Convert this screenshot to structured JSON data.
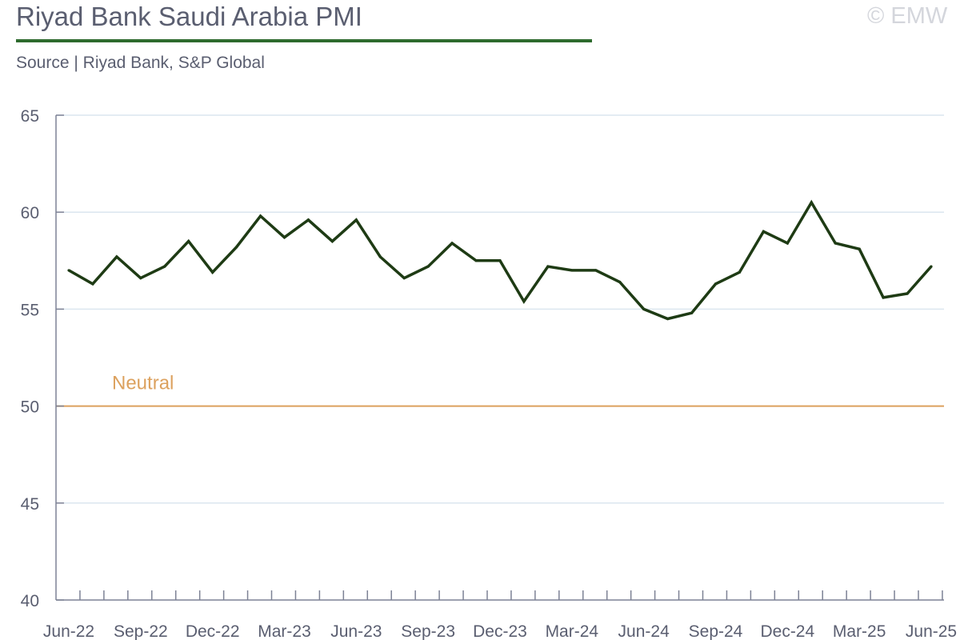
{
  "header": {
    "title": "Riyad Bank Saudi Arabia PMI",
    "source": "Source | Riyad Bank, S&P Global",
    "copyright": "© EMW"
  },
  "colors": {
    "accent": "#2e6b2e",
    "line": "#1e3b14",
    "reference": "#dca15e",
    "grid": "#dbe6ef",
    "axis": "#7d8295",
    "text": "#5a5e70"
  },
  "chart_data": {
    "type": "line",
    "title": "Riyad Bank Saudi Arabia PMI",
    "xlabel": "",
    "ylabel": "",
    "ylim": [
      40,
      65
    ],
    "yticks": [
      40,
      45,
      50,
      55,
      60,
      65
    ],
    "grid": true,
    "x_tick_labels": [
      "Jun-22",
      "Sep-22",
      "Dec-22",
      "Mar-23",
      "Jun-23",
      "Sep-23",
      "Dec-23",
      "Mar-24",
      "Jun-24",
      "Sep-24",
      "Dec-24",
      "Mar-25",
      "Jun-25"
    ],
    "x": [
      "Jun-22",
      "Jul-22",
      "Aug-22",
      "Sep-22",
      "Oct-22",
      "Nov-22",
      "Dec-22",
      "Jan-23",
      "Feb-23",
      "Mar-23",
      "Apr-23",
      "May-23",
      "Jun-23",
      "Jul-23",
      "Aug-23",
      "Sep-23",
      "Oct-23",
      "Nov-23",
      "Dec-23",
      "Jan-24",
      "Feb-24",
      "Mar-24",
      "Apr-24",
      "May-24",
      "Jun-24",
      "Jul-24",
      "Aug-24",
      "Sep-24",
      "Oct-24",
      "Nov-24",
      "Dec-24",
      "Jan-25",
      "Feb-25",
      "Mar-25",
      "Apr-25",
      "May-25",
      "Jun-25"
    ],
    "series": [
      {
        "values": [
          57.0,
          56.3,
          57.7,
          56.6,
          57.2,
          58.5,
          56.9,
          58.2,
          59.8,
          58.7,
          59.6,
          58.5,
          59.6,
          57.7,
          56.6,
          57.2,
          58.4,
          57.5,
          57.5,
          55.4,
          57.2,
          57.0,
          57.0,
          56.4,
          55.0,
          54.5,
          54.8,
          56.3,
          56.9,
          59.0,
          58.4,
          60.5,
          58.4,
          58.1,
          55.6,
          55.8,
          57.2
        ]
      }
    ],
    "reference_line": {
      "value": 50,
      "label": "Neutral"
    }
  }
}
